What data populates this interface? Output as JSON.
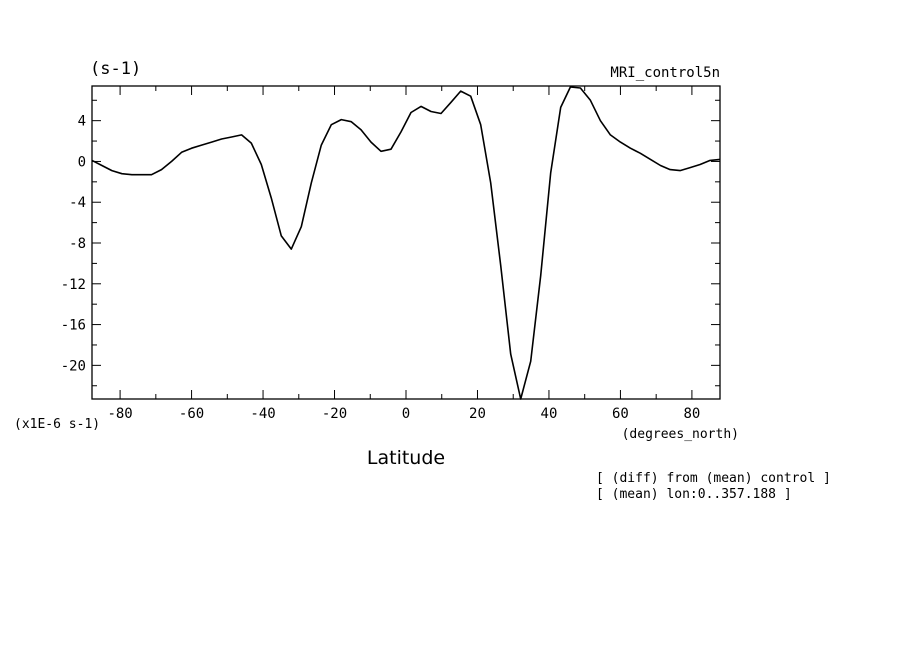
{
  "chart_data": {
    "type": "line",
    "title_left": "(s-1)",
    "title_right": "MRI_control5n",
    "xlabel": "Latitude",
    "x_units": "(degrees_north)",
    "y_scale_label": "(x1E-6 s-1)",
    "xlim": [
      -87.86,
      87.86
    ],
    "ylim": [
      -23.3,
      7.4
    ],
    "x_ticks": [
      -80,
      -60,
      -40,
      -20,
      0,
      20,
      40,
      60,
      80
    ],
    "x_tick_labels": [
      "-80",
      "-60",
      "-40",
      "-20",
      "0",
      "20",
      "40",
      "60",
      "80"
    ],
    "y_ticks": [
      4,
      0,
      -4,
      -8,
      -12,
      -16,
      -20
    ],
    "y_tick_labels": [
      "4",
      "0",
      "-4",
      "-8",
      "-12",
      "-16",
      "-20"
    ],
    "grid": false,
    "series": [
      {
        "x": [
          -87.86,
          -85.1,
          -82.3,
          -79.5,
          -76.7,
          -73.9,
          -71.2,
          -68.4,
          -65.6,
          -62.8,
          -60.0,
          -57.2,
          -54.4,
          -51.6,
          -48.8,
          -46.0,
          -43.3,
          -40.5,
          -37.7,
          -34.9,
          -32.1,
          -29.3,
          -26.5,
          -23.7,
          -20.9,
          -18.1,
          -15.3,
          -12.6,
          -9.8,
          -7.0,
          -4.2,
          -1.4,
          1.4,
          4.2,
          7.0,
          9.8,
          12.6,
          15.3,
          18.1,
          20.9,
          23.7,
          26.5,
          29.3,
          32.1,
          34.9,
          37.7,
          40.5,
          43.3,
          46.0,
          48.8,
          51.6,
          54.4,
          57.2,
          60.0,
          62.8,
          65.6,
          68.4,
          71.2,
          73.9,
          76.7,
          79.5,
          82.3,
          85.1,
          87.86
        ],
        "y": [
          0.1,
          -0.4,
          -0.9,
          -1.2,
          -1.3,
          -1.3,
          -1.3,
          -0.8,
          0.0,
          0.9,
          1.3,
          1.6,
          1.9,
          2.2,
          2.4,
          2.6,
          1.8,
          -0.3,
          -3.6,
          -7.3,
          -8.6,
          -6.4,
          -2.1,
          1.6,
          3.6,
          4.1,
          3.9,
          3.1,
          1.9,
          1.0,
          1.2,
          2.9,
          4.8,
          5.4,
          4.9,
          4.7,
          5.8,
          6.9,
          6.4,
          3.6,
          -2.1,
          -10.2,
          -18.9,
          -23.3,
          -19.6,
          -11.2,
          -1.1,
          5.3,
          7.3,
          7.2,
          6.0,
          4.0,
          2.6,
          1.9,
          1.3,
          0.8,
          0.2,
          -0.4,
          -0.8,
          -0.9,
          -0.6,
          -0.3,
          0.1,
          0.2
        ]
      }
    ]
  },
  "annotations": [
    "[ (diff) from (mean) control ]",
    "[ (mean) lon:0..357.188 ]"
  ]
}
